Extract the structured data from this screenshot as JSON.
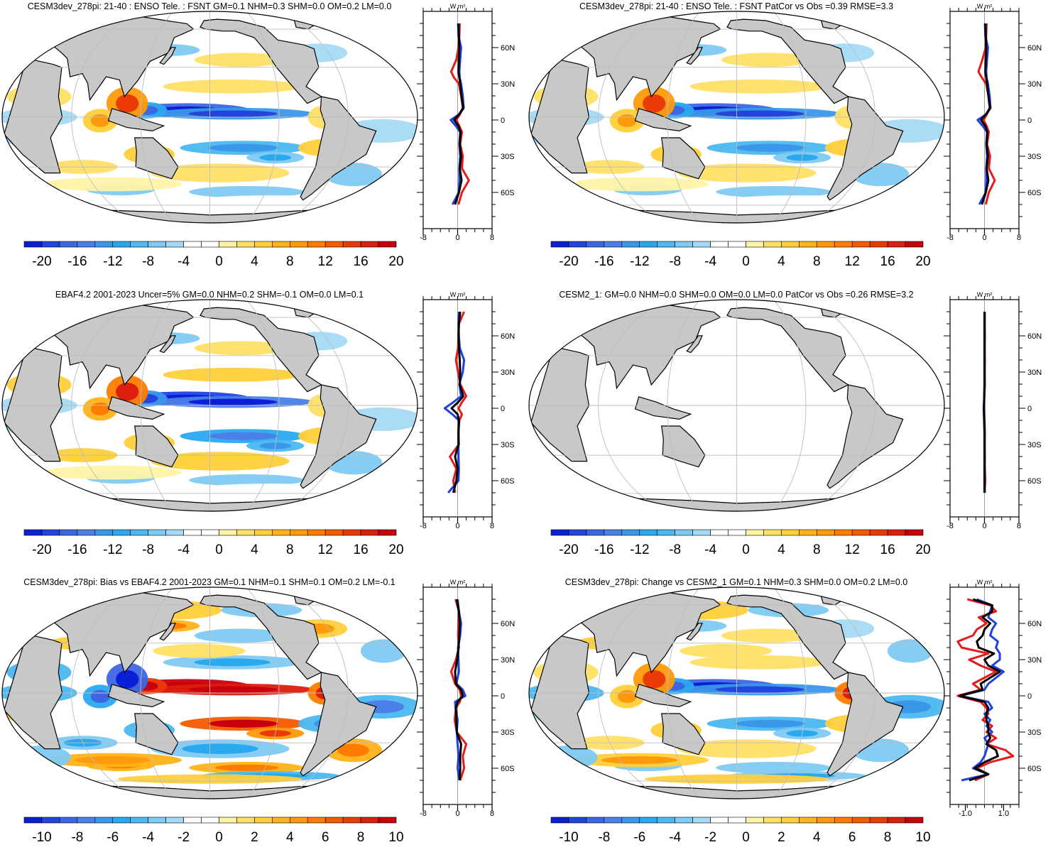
{
  "colors": {
    "land": "#c8c8c8",
    "ocean": "#ffffff",
    "grid": "#bdbdbd",
    "coast": "#000000",
    "line_red": "#e41a1c",
    "line_blue": "#1f3fe0",
    "line_black": "#000000"
  },
  "colorbar_palette": [
    "#0b1fd6",
    "#2245e0",
    "#3d66e4",
    "#4a80e8",
    "#3a97ea",
    "#2aa9ef",
    "#4cb8f0",
    "#7ecaf2",
    "#a6daf4",
    "#ffffff",
    "#ffffff",
    "#fff3a8",
    "#ffe066",
    "#ffcf3a",
    "#ffb31a",
    "#ff9a0a",
    "#ff7c00",
    "#f65a00",
    "#ea3a05",
    "#dc1e0e",
    "#c8000e"
  ],
  "icons": {
    "map": "robinson-projection-map",
    "profile": "zonal-mean-profile-plot"
  },
  "panels": [
    {
      "id": "p1",
      "title": "CESM3dev_278pi: 21-40 : ENSO Tele. : FSNT GM=0.1 NHM=0.3 SHM=0.0 OM=0.2 LM=0.0",
      "colorbar_labels": [
        "-20",
        "-16",
        "-12",
        "-8",
        "-4",
        "0",
        "4",
        "8",
        "12",
        "16",
        "20"
      ],
      "pattern": {
        "enso": 0.85,
        "noise": 0.35
      },
      "chart_data": {
        "type": "line",
        "units": "W m²",
        "xlim": [
          -8,
          8
        ],
        "xtick_labels": [
          "-8",
          "0",
          "8"
        ],
        "ytick_labels": [
          "60N",
          "30N",
          "0",
          "30S",
          "60S"
        ],
        "y_lat": [
          60,
          30,
          0,
          -30,
          -60
        ],
        "lat": [
          80,
          70,
          60,
          50,
          40,
          35,
          30,
          20,
          10,
          5,
          0,
          -5,
          -10,
          -20,
          -30,
          -40,
          -50,
          -60,
          -70
        ],
        "series": [
          {
            "color": "red",
            "values": [
              0.5,
              0.4,
              0.2,
              -0.3,
              -1.5,
              -0.8,
              0.3,
              0.8,
              1.2,
              0.6,
              -0.3,
              0.4,
              1.0,
              0.6,
              1.2,
              1.0,
              2.6,
              1.0,
              0.2
            ]
          },
          {
            "color": "blue",
            "values": [
              0.1,
              0.2,
              0.8,
              0.6,
              0.4,
              0.5,
              0.8,
              1.2,
              1.4,
              0.5,
              -1.6,
              -0.4,
              0.6,
              0.4,
              0.6,
              0.4,
              0.4,
              0.3,
              -1.2
            ]
          },
          {
            "color": "black",
            "values": [
              0.2,
              0.3,
              0.4,
              0.3,
              0.2,
              0.4,
              0.6,
              0.9,
              1.3,
              0.4,
              -0.8,
              0.2,
              0.7,
              0.5,
              0.8,
              0.5,
              0.9,
              0.3,
              -0.6
            ]
          }
        ]
      }
    },
    {
      "id": "p2",
      "title": "CESM3dev_278pi: 21-40 : ENSO Tele. : FSNT PatCor vs Obs =0.39 RMSE=3.3",
      "colorbar_labels": [
        "-20",
        "-16",
        "-12",
        "-8",
        "-4",
        "0",
        "4",
        "8",
        "12",
        "16",
        "20"
      ],
      "pattern": {
        "enso": 0.85,
        "noise": 0.35
      },
      "chart_data": {
        "type": "line",
        "units": "W m²",
        "xlim": [
          -8,
          8
        ],
        "xtick_labels": [
          "-8",
          "0",
          "8"
        ],
        "ytick_labels": [
          "60N",
          "30N",
          "0",
          "30S",
          "60S"
        ],
        "y_lat": [
          60,
          30,
          0,
          -30,
          -60
        ],
        "lat": [
          80,
          70,
          60,
          50,
          40,
          35,
          30,
          20,
          10,
          5,
          0,
          -5,
          -10,
          -20,
          -30,
          -40,
          -50,
          -60,
          -70
        ],
        "series": [
          {
            "color": "red",
            "values": [
              0.5,
              0.4,
              0.3,
              -0.5,
              -1.4,
              -0.6,
              0.4,
              0.9,
              1.2,
              0.6,
              -0.2,
              0.5,
              1.0,
              0.6,
              1.3,
              1.0,
              2.4,
              1.0,
              0.3
            ]
          },
          {
            "color": "blue",
            "values": [
              0.1,
              0.2,
              0.8,
              0.6,
              0.4,
              0.5,
              0.8,
              1.2,
              1.4,
              0.5,
              -1.6,
              -0.4,
              0.6,
              0.4,
              0.6,
              0.4,
              0.4,
              0.3,
              -1.2
            ]
          },
          {
            "color": "black",
            "values": [
              0.2,
              0.3,
              0.4,
              0.3,
              0.2,
              0.4,
              0.6,
              0.9,
              1.3,
              0.4,
              -0.8,
              0.2,
              0.7,
              0.5,
              0.8,
              0.5,
              0.9,
              0.3,
              -0.6
            ]
          }
        ]
      }
    },
    {
      "id": "p3",
      "title": "EBAF4.2 2001-2023 Uncer=5% GM=0.0 NHM=0.2 SHM=-0.1 OM=0.0 LM=0.1",
      "colorbar_labels": [
        "-20",
        "-16",
        "-12",
        "-8",
        "-4",
        "0",
        "4",
        "8",
        "12",
        "16",
        "20"
      ],
      "pattern": {
        "enso": 1.0,
        "noise": 0.35
      },
      "chart_data": {
        "type": "line",
        "units": "W m²",
        "xlim": [
          -8,
          8
        ],
        "xtick_labels": [
          "-8",
          "0",
          "8"
        ],
        "ytick_labels": [
          "60N",
          "30N",
          "0",
          "30S",
          "60S"
        ],
        "y_lat": [
          60,
          30,
          0,
          -30,
          -60
        ],
        "lat": [
          80,
          70,
          60,
          50,
          40,
          30,
          20,
          10,
          5,
          0,
          -5,
          -10,
          -20,
          -30,
          -40,
          -50,
          -60,
          -70
        ],
        "series": [
          {
            "color": "red",
            "values": [
              1.5,
              0.3,
              0.2,
              0.1,
              -0.4,
              0.1,
              0.6,
              2.0,
              1.0,
              0.2,
              1.0,
              0.4,
              0.2,
              0.3,
              -1.8,
              -0.3,
              -1.0,
              -0.6
            ]
          },
          {
            "color": "blue",
            "values": [
              0.3,
              0.2,
              0.3,
              0.5,
              1.5,
              1.2,
              0.4,
              0.8,
              -1.0,
              -3.0,
              -1.2,
              0.3,
              0.2,
              0.2,
              0.2,
              0.3,
              0.2,
              -2.2
            ]
          },
          {
            "color": "black",
            "values": [
              0.6,
              0.3,
              0.2,
              0.3,
              0.5,
              0.6,
              0.5,
              1.3,
              0.1,
              -1.4,
              0.0,
              0.3,
              0.2,
              0.2,
              -0.6,
              0.0,
              -0.3,
              -1.0
            ]
          }
        ]
      }
    },
    {
      "id": "p4",
      "title": "CESM2_1: GM=0.0 NHM=0.0 SHM=0.0 OM=0.0 LM=0.0 PatCor vs Obs =0.26 RMSE=3.2",
      "colorbar_labels": [
        "-20",
        "-16",
        "-12",
        "-8",
        "-4",
        "0",
        "4",
        "8",
        "12",
        "16",
        "20"
      ],
      "pattern": {
        "enso": 0.15,
        "noise": 0.0
      },
      "chart_data": {
        "type": "line",
        "units": "W m²",
        "xlim": [
          -8,
          8
        ],
        "xtick_labels": [
          "-8",
          "0",
          "8"
        ],
        "ytick_labels": [
          "60N",
          "30N",
          "0",
          "30S",
          "60S"
        ],
        "y_lat": [
          60,
          30,
          0,
          -30,
          -60
        ],
        "lat": [
          80,
          60,
          40,
          20,
          0,
          -20,
          -40,
          -60,
          -70
        ],
        "series": [
          {
            "color": "red",
            "values": [
              0.1,
              0.0,
              0.1,
              0.0,
              -0.1,
              0.1,
              0.0,
              0.2,
              0.0
            ]
          },
          {
            "color": "blue",
            "values": [
              0.0,
              0.1,
              0.0,
              0.1,
              -0.2,
              0.0,
              0.1,
              0.0,
              0.1
            ]
          },
          {
            "color": "black",
            "values": [
              0.0,
              0.0,
              0.0,
              0.0,
              -0.1,
              0.0,
              0.0,
              0.0,
              0.0
            ]
          }
        ]
      }
    },
    {
      "id": "p5",
      "title": "CESM3dev_278pi: Bias vs EBAF4.2 2001-2023 GM=0.1 NHM=0.1 SHM=0.1 OM=0.2 LM=-0.1",
      "colorbar_labels": [
        "-10",
        "-8",
        "-6",
        "-4",
        "-2",
        "0",
        "2",
        "4",
        "6",
        "8",
        "10"
      ],
      "pattern": {
        "enso": -1.3,
        "noise": 0.9
      },
      "chart_data": {
        "type": "line",
        "units": "W m²",
        "xlim": [
          -8,
          8
        ],
        "xtick_labels": [
          "-8",
          "0",
          "8"
        ],
        "ytick_labels": [
          "60N",
          "30N",
          "0",
          "30S",
          "60S"
        ],
        "y_lat": [
          60,
          30,
          0,
          -30,
          -60
        ],
        "lat": [
          80,
          70,
          60,
          50,
          40,
          30,
          20,
          10,
          5,
          0,
          -5,
          -10,
          -20,
          -30,
          -40,
          -50,
          -60,
          -70
        ],
        "series": [
          {
            "color": "red",
            "values": [
              -0.5,
              0.3,
              0.2,
              0.1,
              0.3,
              -0.4,
              -1.5,
              -0.6,
              0.5,
              0.8,
              0.5,
              -0.4,
              -0.7,
              -0.2,
              2.0,
              1.2,
              1.5,
              0.6
            ]
          },
          {
            "color": "blue",
            "values": [
              0.0,
              0.3,
              0.8,
              0.6,
              0.1,
              0.2,
              0.3,
              -0.3,
              1.2,
              1.8,
              -0.6,
              -0.5,
              0.0,
              -0.2,
              0.0,
              0.2,
              0.0,
              0.4
            ]
          },
          {
            "color": "black",
            "values": [
              -0.2,
              0.3,
              0.5,
              0.4,
              0.2,
              -0.1,
              -0.6,
              -0.4,
              0.8,
              1.2,
              0.0,
              -0.4,
              -0.3,
              -0.2,
              0.8,
              0.6,
              0.6,
              0.5
            ]
          }
        ]
      }
    },
    {
      "id": "p6",
      "title": "CESM3dev_278pi: Change vs CESM2_1 GM=0.1 NHM=0.3 SHM=0.0 OM=0.2 LM=0.0",
      "colorbar_labels": [
        "-10",
        "-8",
        "-6",
        "-4",
        "-2",
        "0",
        "2",
        "4",
        "6",
        "8",
        "10"
      ],
      "pattern": {
        "enso": 0.85,
        "noise": 0.85
      },
      "chart_data": {
        "type": "line",
        "units": "W m²",
        "xlim": [
          -1.8,
          1.8
        ],
        "xtick_labels": [
          "-1.0",
          "1.0"
        ],
        "xtick_values": [
          -1.0,
          1.0
        ],
        "ytick_labels": [
          "60N",
          "30N",
          "0",
          "30S",
          "60S"
        ],
        "y_lat": [
          60,
          30,
          0,
          -30,
          -60
        ],
        "lat": [
          80,
          75,
          70,
          65,
          60,
          55,
          50,
          45,
          40,
          35,
          30,
          25,
          20,
          15,
          10,
          5,
          0,
          -5,
          -10,
          -15,
          -20,
          -25,
          -30,
          -35,
          -40,
          -45,
          -50,
          -55,
          -60,
          -65,
          -70
        ],
        "series": [
          {
            "color": "red",
            "values": [
              -0.9,
              0.3,
              0.6,
              -0.3,
              0.1,
              -0.4,
              -0.6,
              -1.4,
              -1.2,
              0.2,
              -0.8,
              -0.2,
              0.6,
              0.0,
              -0.6,
              -0.2,
              -1.4,
              -0.2,
              0.1,
              0.2,
              -0.1,
              0.4,
              0.1,
              0.6,
              0.1,
              1.1,
              1.5,
              0.3,
              -0.4,
              0.2,
              -0.5
            ]
          },
          {
            "color": "blue",
            "values": [
              -0.4,
              0.4,
              0.3,
              0.2,
              0.6,
              0.4,
              0.3,
              0.7,
              0.6,
              0.8,
              0.8,
              0.4,
              1.0,
              0.6,
              0.2,
              0.0,
              -1.3,
              0.2,
              0.4,
              0.0,
              0.3,
              0.1,
              0.4,
              0.0,
              0.2,
              0.1,
              0.0,
              -0.2,
              -0.6,
              0.2,
              -1.2
            ]
          },
          {
            "color": "black",
            "values": [
              -0.6,
              0.4,
              0.4,
              -0.1,
              0.3,
              0.0,
              -0.1,
              -0.4,
              -0.3,
              0.5,
              0.0,
              0.2,
              0.8,
              0.3,
              -0.2,
              -0.1,
              -1.3,
              0.0,
              0.2,
              0.1,
              0.1,
              0.2,
              0.2,
              0.3,
              0.1,
              0.6,
              0.7,
              0.0,
              -0.5,
              0.2,
              -0.8
            ]
          }
        ]
      }
    }
  ]
}
